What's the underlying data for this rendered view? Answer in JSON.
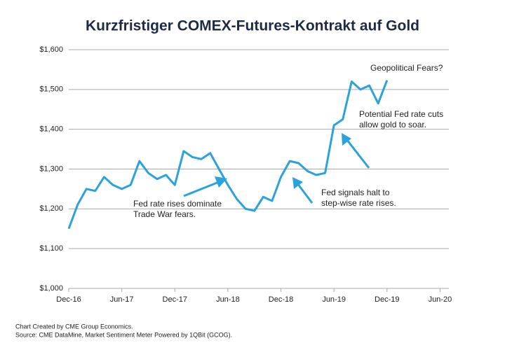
{
  "chart_data": {
    "type": "line",
    "title": "Kurzfristiger COMEX-Futures-Kontrakt auf Gold",
    "x": [
      "2016-12",
      "2017-01",
      "2017-02",
      "2017-03",
      "2017-04",
      "2017-05",
      "2017-06",
      "2017-07",
      "2017-08",
      "2017-09",
      "2017-10",
      "2017-11",
      "2017-12",
      "2018-01",
      "2018-02",
      "2018-03",
      "2018-04",
      "2018-05",
      "2018-06",
      "2018-07",
      "2018-08",
      "2018-09",
      "2018-10",
      "2018-11",
      "2018-12",
      "2019-01",
      "2019-02",
      "2019-03",
      "2019-04",
      "2019-05",
      "2019-06",
      "2019-07",
      "2019-08",
      "2019-09",
      "2019-10",
      "2019-11",
      "2019-12"
    ],
    "series": [
      {
        "color": "#2aa3dc",
        "values": [
          1150,
          1210,
          1250,
          1245,
          1280,
          1260,
          1250,
          1260,
          1320,
          1290,
          1275,
          1285,
          1260,
          1345,
          1330,
          1325,
          1340,
          1300,
          1260,
          1225,
          1200,
          1195,
          1230,
          1220,
          1280,
          1320,
          1315,
          1295,
          1285,
          1290,
          1410,
          1425,
          1520,
          1500,
          1510,
          1465,
          1523
        ]
      }
    ],
    "xlim": [
      "2016-12",
      "2020-07"
    ],
    "xticks": [
      {
        "value": "2016-12",
        "label": "Dec-16"
      },
      {
        "value": "2017-06",
        "label": "Jun-17"
      },
      {
        "value": "2017-12",
        "label": "Dec-17"
      },
      {
        "value": "2018-06",
        "label": "Jun-18"
      },
      {
        "value": "2018-12",
        "label": "Dec-18"
      },
      {
        "value": "2019-06",
        "label": "Jun-19"
      },
      {
        "value": "2019-12",
        "label": "Dec-19"
      },
      {
        "value": "2020-06",
        "label": "Jun-20"
      }
    ],
    "ylim": [
      1000,
      1600
    ],
    "yticks": [
      {
        "value": 1000,
        "label": "$1,000"
      },
      {
        "value": 1100,
        "label": "$1,100"
      },
      {
        "value": 1200,
        "label": "$1,200"
      },
      {
        "value": 1300,
        "label": "$1,300"
      },
      {
        "value": 1400,
        "label": "$1,400"
      },
      {
        "value": 1500,
        "label": "$1,500"
      },
      {
        "value": 1600,
        "label": "$1,600"
      }
    ],
    "grid": true,
    "annotations": [
      [
        "Geopolitical Fears?"
      ],
      [
        "Potential Fed rate cuts",
        "allow gold to soar."
      ],
      [
        "Fed signals halt to",
        "step-wise rate rises."
      ],
      [
        "Fed rate rises dominate",
        "Trade War fears."
      ]
    ],
    "footnotes": [
      "Chart Created by CME Group Economics.",
      "Source:  CME DataMine, Market Sentiment Meter Powered by 1QBit (GCOG)."
    ]
  }
}
